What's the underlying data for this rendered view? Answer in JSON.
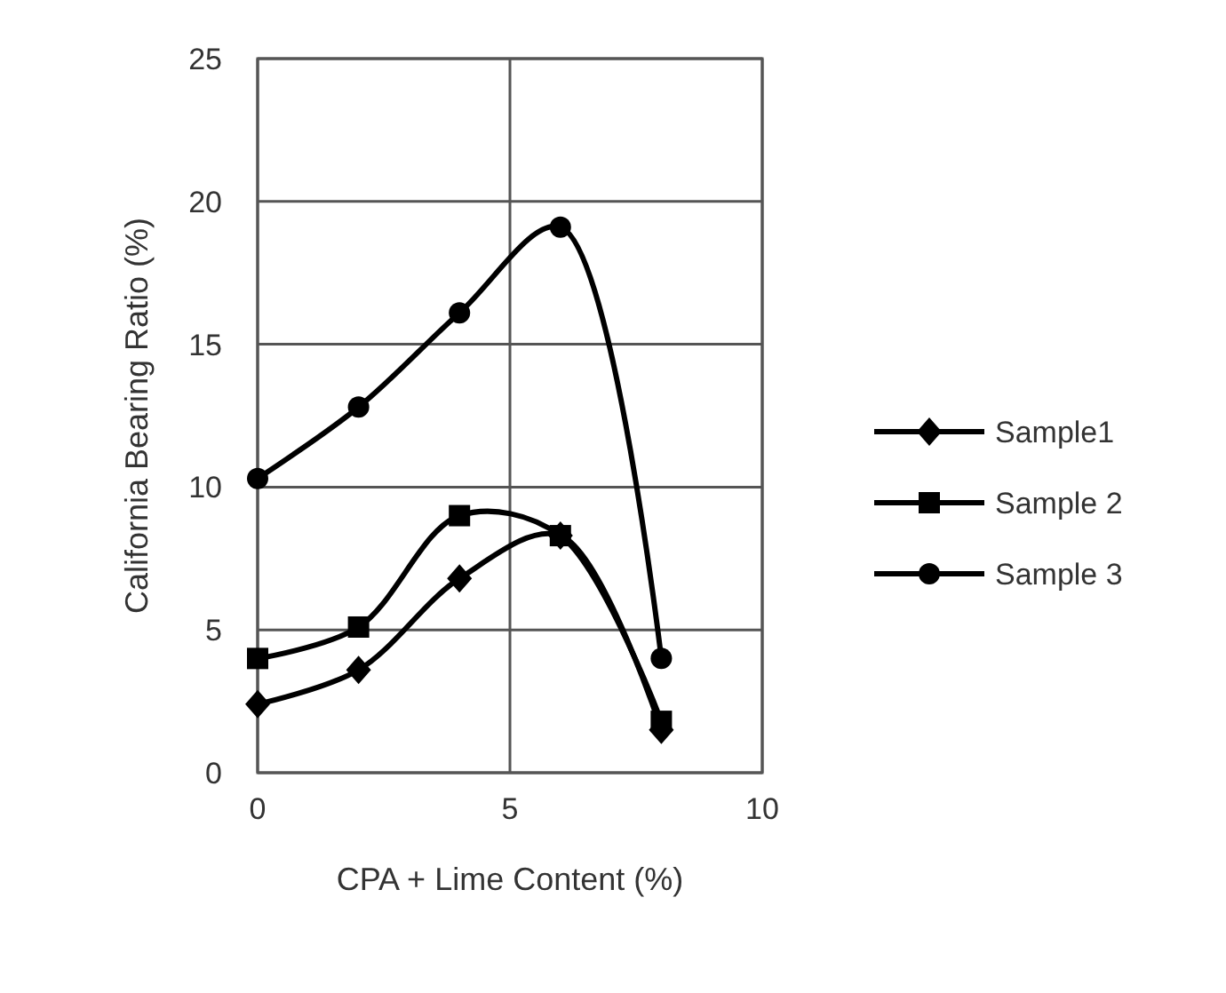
{
  "chart_data": {
    "type": "line",
    "xlabel": "CPA + Lime Content (%)",
    "ylabel": "California Bearing Ratio (%)",
    "x": [
      0,
      2,
      4,
      6,
      8
    ],
    "series": [
      {
        "name": "Sample1",
        "color": "#000000",
        "marker": "diamond",
        "values": [
          2.4,
          3.6,
          6.8,
          8.3,
          1.5
        ]
      },
      {
        "name": "Sample 2",
        "color": "#000000",
        "marker": "square",
        "values": [
          4.0,
          5.1,
          9.0,
          8.3,
          1.8
        ]
      },
      {
        "name": "Sample 3",
        "color": "#000000",
        "marker": "circle",
        "values": [
          10.3,
          12.8,
          16.1,
          19.1,
          4.0
        ]
      }
    ],
    "xlim": [
      0,
      10
    ],
    "xticks": [
      0,
      5,
      10
    ],
    "ylim": [
      0,
      25
    ],
    "yticks": [
      0,
      5,
      10,
      15,
      20,
      25
    ],
    "grid": true,
    "legend": "right",
    "line_style": "solid"
  }
}
